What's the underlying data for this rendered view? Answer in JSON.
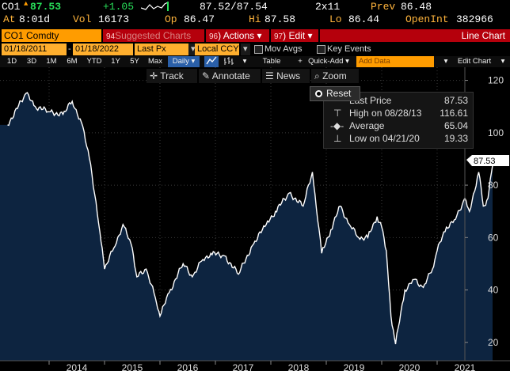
{
  "quote": {
    "ticker": "CO1",
    "last": "87.53",
    "change": "+1.05",
    "bid_ask": "87.52/87.54",
    "size": "2x11",
    "prev_label": "Prev",
    "prev": "86.48",
    "time_label": "At",
    "time": "8:01d",
    "vol_label": "Vol",
    "vol": "16173",
    "op_label": "Op",
    "op": "86.47",
    "hi_label": "Hi",
    "hi": "87.58",
    "lo_label": "Lo",
    "lo": "86.44",
    "oi_label": "OpenInt",
    "oi": "382966"
  },
  "menubar": {
    "security": "CO1 Comdty",
    "suggested": "Suggested Charts",
    "suggested_num": "94",
    "actions": "Actions",
    "actions_num": "96",
    "edit": "Edit",
    "edit_num": "97",
    "chart_type": "Line Chart"
  },
  "settings": {
    "start_date": "01/18/2011",
    "end_date": "01/18/2022",
    "field": "Last Px",
    "currency": "Local CCY",
    "mov_avgs": "Mov Avgs",
    "key_events": "Key Events"
  },
  "toolbar": {
    "periods": [
      "1D",
      "3D",
      "1M",
      "6M",
      "YTD",
      "1Y",
      "5Y",
      "Max"
    ],
    "frequency": "Daily",
    "table": "Table",
    "quick_add": "Quick-Add",
    "add_data_placeholder": "Add Data",
    "edit_chart": "Edit Chart"
  },
  "tools": {
    "track": "Track",
    "annotate": "Annotate",
    "news": "News",
    "zoom": "Zoom",
    "reset": "Reset"
  },
  "legend": {
    "last_price_label": "Last Price",
    "last_price": "87.53",
    "high_label": "High on 08/28/13",
    "high": "116.61",
    "average_label": "Average",
    "average": "65.04",
    "low_label": "Low on 04/21/20",
    "low": "19.33"
  },
  "chart_data": {
    "type": "area",
    "series": [
      {
        "name": "Last Price",
        "x": [
          "2013-04",
          "2013-08",
          "2013-10",
          "2014-01",
          "2014-04",
          "2014-06",
          "2014-08",
          "2014-10",
          "2014-12",
          "2015-01",
          "2015-03",
          "2015-05",
          "2015-07",
          "2015-08",
          "2015-10",
          "2015-12",
          "2016-01",
          "2016-03",
          "2016-06",
          "2016-08",
          "2016-10",
          "2016-12",
          "2017-03",
          "2017-06",
          "2017-09",
          "2017-12",
          "2018-02",
          "2018-05",
          "2018-08",
          "2018-10",
          "2018-12",
          "2019-02",
          "2019-04",
          "2019-06",
          "2019-08",
          "2019-10",
          "2019-12",
          "2020-01",
          "2020-02",
          "2020-03",
          "2020-04",
          "2020-06",
          "2020-08",
          "2020-10",
          "2020-12",
          "2021-01",
          "2021-03",
          "2021-05",
          "2021-07",
          "2021-08",
          "2021-10",
          "2021-11",
          "2021-12",
          "2022-01"
        ],
        "values": [
          103,
          115,
          110,
          108,
          107,
          112,
          104,
          88,
          62,
          48,
          56,
          65,
          56,
          45,
          48,
          37,
          30,
          39,
          50,
          45,
          51,
          54,
          53,
          46,
          57,
          65,
          70,
          77,
          72,
          85,
          54,
          63,
          72,
          65,
          60,
          60,
          68,
          64,
          55,
          30,
          19.33,
          40,
          44,
          41,
          48,
          55,
          64,
          67,
          75,
          70,
          85,
          72,
          75,
          87.53
        ]
      }
    ],
    "x_ticks": [
      "2014",
      "2015",
      "2016",
      "2017",
      "2018",
      "2019",
      "2020",
      "2021"
    ],
    "y_ticks": [
      20,
      40,
      60,
      80,
      100,
      120
    ],
    "ylim": [
      13,
      125
    ],
    "current_value_label": "87.53",
    "grid": true,
    "fill_color": "#0d2440",
    "line_color": "#ffffff"
  }
}
